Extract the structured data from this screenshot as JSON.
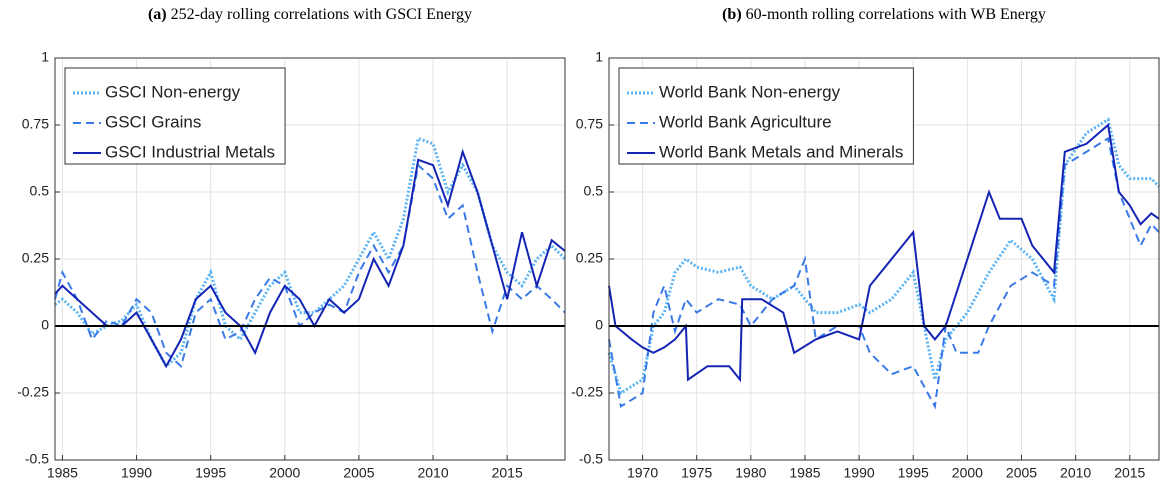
{
  "chart_data": [
    {
      "type": "line",
      "label": "(a)",
      "title": "252-day rolling correlations with GSCI Energy",
      "xlim": [
        1984.5,
        2018.9
      ],
      "xticks": [
        1985,
        1990,
        1995,
        2000,
        2005,
        2010,
        2015
      ],
      "ylim": [
        -0.5,
        1
      ],
      "yticks": [
        -0.5,
        -0.25,
        0,
        0.25,
        0.5,
        0.75,
        1
      ],
      "grid": true,
      "hline": 0,
      "legend": "upper-left",
      "series": [
        {
          "name": "GSCI Non-energy",
          "color": "#5ab4f5",
          "dash": "dotted",
          "x": [
            1984.5,
            1985,
            1986,
            1987,
            1988,
            1989,
            1990,
            1991,
            1992,
            1993,
            1994,
            1995,
            1996,
            1997,
            1998,
            1999,
            2000,
            2001,
            2002,
            2003,
            2004,
            2005,
            2006,
            2007,
            2008,
            2009,
            2010,
            2011,
            2012,
            2013,
            2014,
            2015,
            2016,
            2017,
            2018,
            2018.9
          ],
          "values": [
            0.08,
            0.1,
            0.05,
            -0.03,
            0.0,
            0.02,
            0.08,
            -0.05,
            -0.15,
            -0.1,
            0.1,
            0.2,
            0.0,
            -0.05,
            0.05,
            0.15,
            0.2,
            0.05,
            0.05,
            0.1,
            0.15,
            0.25,
            0.35,
            0.25,
            0.4,
            0.7,
            0.68,
            0.5,
            0.6,
            0.5,
            0.3,
            0.2,
            0.15,
            0.25,
            0.3,
            0.25
          ]
        },
        {
          "name": "GSCI Grains",
          "color": "#3a7ae8",
          "dash": "dashed",
          "x": [
            1984.5,
            1985,
            1986,
            1987,
            1988,
            1989,
            1990,
            1991,
            1992,
            1993,
            1994,
            1995,
            1996,
            1997,
            1998,
            1999,
            2000,
            2001,
            2002,
            2003,
            2004,
            2005,
            2006,
            2007,
            2008,
            2009,
            2010,
            2011,
            2012,
            2013,
            2014,
            2015,
            2016,
            2017,
            2018,
            2018.9
          ],
          "values": [
            0.1,
            0.2,
            0.1,
            -0.05,
            0.02,
            0.0,
            0.1,
            0.05,
            -0.1,
            -0.15,
            0.05,
            0.1,
            -0.05,
            -0.02,
            0.1,
            0.18,
            0.15,
            0.0,
            0.05,
            0.08,
            0.05,
            0.2,
            0.3,
            0.2,
            0.3,
            0.6,
            0.55,
            0.4,
            0.45,
            0.2,
            -0.02,
            0.15,
            0.1,
            0.15,
            0.1,
            0.05
          ]
        },
        {
          "name": "GSCI Industrial Metals",
          "color": "#1424b4",
          "dash": "solid",
          "x": [
            1984.5,
            1985,
            1986,
            1987,
            1988,
            1989,
            1990,
            1991,
            1992,
            1993,
            1994,
            1995,
            1996,
            1997,
            1998,
            1999,
            2000,
            2001,
            2002,
            2003,
            2004,
            2005,
            2006,
            2007,
            2008,
            2009,
            2010,
            2011,
            2012,
            2013,
            2014,
            2015,
            2016,
            2017,
            2018,
            2018.9
          ],
          "values": [
            0.12,
            0.15,
            0.1,
            0.05,
            0.0,
            0.0,
            0.05,
            -0.05,
            -0.15,
            -0.05,
            0.1,
            0.15,
            0.05,
            0.0,
            -0.1,
            0.05,
            0.15,
            0.1,
            0.0,
            0.1,
            0.05,
            0.1,
            0.25,
            0.15,
            0.3,
            0.62,
            0.6,
            0.45,
            0.65,
            0.5,
            0.3,
            0.1,
            0.35,
            0.15,
            0.32,
            0.28
          ]
        }
      ]
    },
    {
      "type": "line",
      "label": "(b)",
      "title": "60-month rolling correlations with WB Energy",
      "xlim": [
        1966.9,
        2017.7
      ],
      "xticks": [
        1970,
        1975,
        1980,
        1985,
        1990,
        1995,
        2000,
        2005,
        2010,
        2015
      ],
      "ylim": [
        -0.5,
        1
      ],
      "yticks": [
        -0.5,
        -0.25,
        0,
        0.25,
        0.5,
        0.75,
        1
      ],
      "grid": true,
      "hline": 0,
      "legend": "upper-left",
      "series": [
        {
          "name": "World Bank Non-energy",
          "color": "#5ab4f5",
          "dash": "dotted",
          "x": [
            1966.9,
            1968,
            1970,
            1971,
            1972,
            1973,
            1974,
            1975,
            1977,
            1979,
            1980,
            1982,
            1984,
            1986,
            1988,
            1990,
            1991,
            1993,
            1995,
            1996,
            1997,
            1998,
            2000,
            2002,
            2004,
            2006,
            2008,
            2009,
            2011,
            2013,
            2014,
            2015,
            2017,
            2017.7
          ],
          "values": [
            -0.1,
            -0.25,
            -0.2,
            0.0,
            0.05,
            0.2,
            0.25,
            0.22,
            0.2,
            0.22,
            0.15,
            0.1,
            0.15,
            0.05,
            0.05,
            0.08,
            0.05,
            0.1,
            0.2,
            0.0,
            -0.2,
            -0.05,
            0.05,
            0.2,
            0.32,
            0.25,
            0.1,
            0.6,
            0.72,
            0.77,
            0.6,
            0.55,
            0.55,
            0.52
          ]
        },
        {
          "name": "World Bank Agriculture",
          "color": "#3a7ae8",
          "dash": "dashed",
          "x": [
            1966.9,
            1968,
            1970,
            1971,
            1972,
            1973,
            1974,
            1975,
            1977,
            1979,
            1980,
            1982,
            1984,
            1985,
            1986,
            1988,
            1990,
            1991,
            1993,
            1995,
            1997,
            1998,
            1999,
            2000,
            2001,
            2002,
            2004,
            2006,
            2008,
            2009,
            2011,
            2013,
            2014,
            2015,
            2016,
            2017,
            2017.7
          ],
          "values": [
            -0.05,
            -0.3,
            -0.25,
            0.05,
            0.15,
            -0.02,
            0.1,
            0.05,
            0.1,
            0.08,
            0.0,
            0.1,
            0.15,
            0.25,
            -0.05,
            0.0,
            0.0,
            -0.1,
            -0.18,
            -0.15,
            -0.3,
            0.0,
            -0.1,
            -0.1,
            -0.1,
            0.0,
            0.15,
            0.2,
            0.15,
            0.6,
            0.65,
            0.7,
            0.5,
            0.4,
            0.3,
            0.38,
            0.35
          ]
        },
        {
          "name": "World Bank Metals and Minerals",
          "color": "#1424b4",
          "dash": "solid",
          "x": [
            1966.9,
            1967.5,
            1969,
            1970,
            1971,
            1972,
            1973,
            1974,
            1974.2,
            1976,
            1978,
            1979,
            1979.2,
            1981,
            1983,
            1984,
            1986,
            1988,
            1990,
            1991,
            1993,
            1995,
            1996,
            1997,
            1998,
            2000,
            2002,
            2003,
            2005,
            2006,
            2008,
            2009,
            2011,
            2013,
            2014,
            2015,
            2016,
            2017,
            2017.7
          ],
          "values": [
            0.15,
            0.0,
            -0.05,
            -0.08,
            -0.1,
            -0.08,
            -0.05,
            0.0,
            -0.2,
            -0.15,
            -0.15,
            -0.2,
            0.1,
            0.1,
            0.05,
            -0.1,
            -0.05,
            -0.02,
            -0.05,
            0.15,
            0.25,
            0.35,
            0.0,
            -0.05,
            0.0,
            0.25,
            0.5,
            0.4,
            0.4,
            0.3,
            0.2,
            0.65,
            0.68,
            0.75,
            0.5,
            0.45,
            0.38,
            0.42,
            0.4
          ]
        }
      ]
    }
  ]
}
